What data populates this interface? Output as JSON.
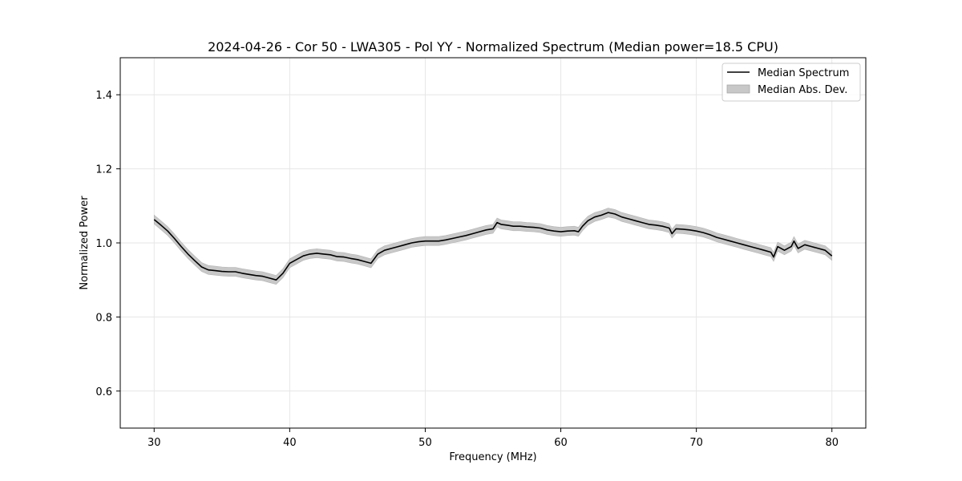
{
  "chart_data": {
    "type": "line",
    "title": "2024-04-26 - Cor 50 - LWA305 - Pol YY - Normalized Spectrum (Median power=18.5 CPU)",
    "xlabel": "Frequency (MHz)",
    "ylabel": "Normalized Power",
    "xlim": [
      27.5,
      82.5
    ],
    "ylim": [
      0.5,
      1.5
    ],
    "xticks": [
      30,
      40,
      50,
      60,
      70,
      80
    ],
    "yticks": [
      0.6,
      0.8,
      1.0,
      1.2,
      1.4
    ],
    "xtick_labels": [
      "30",
      "40",
      "50",
      "60",
      "70",
      "80"
    ],
    "ytick_labels": [
      "0.6",
      "0.8",
      "1.0",
      "1.2",
      "1.4"
    ],
    "grid": true,
    "legend_position": "top-right",
    "colors": {
      "line": "#000000",
      "band": "#c8c8c8",
      "grid": "#e6e6e6"
    },
    "series": [
      {
        "name": "Median Spectrum",
        "x": [
          30,
          30.5,
          31,
          31.5,
          32,
          32.5,
          33,
          33.5,
          34,
          34.5,
          35,
          35.5,
          36,
          36.5,
          37,
          37.5,
          38,
          38.5,
          39,
          39.5,
          40,
          40.5,
          41,
          41.5,
          42,
          42.5,
          43,
          43.5,
          44,
          44.5,
          45,
          45.5,
          46,
          46.5,
          47,
          47.5,
          48,
          48.5,
          49,
          49.5,
          50,
          50.5,
          51,
          51.5,
          52,
          52.5,
          53,
          53.5,
          54,
          54.5,
          55,
          55.3,
          55.6,
          56,
          56.5,
          57,
          57.5,
          58,
          58.5,
          59,
          59.5,
          60,
          60.5,
          61,
          61.3,
          61.6,
          62,
          62.5,
          63,
          63.5,
          64,
          64.5,
          65,
          65.5,
          66,
          66.5,
          67,
          67.5,
          68,
          68.2,
          68.5,
          69,
          69.5,
          70,
          70.5,
          71,
          71.5,
          72,
          72.5,
          73,
          73.5,
          74,
          74.5,
          75,
          75.5,
          75.7,
          76,
          76.5,
          77,
          77.2,
          77.5,
          78,
          78.5,
          79,
          79.5,
          80
        ],
        "y": [
          1.063,
          1.048,
          1.032,
          1.012,
          0.99,
          0.97,
          0.952,
          0.935,
          0.927,
          0.925,
          0.923,
          0.922,
          0.922,
          0.918,
          0.915,
          0.912,
          0.91,
          0.905,
          0.9,
          0.918,
          0.945,
          0.955,
          0.965,
          0.97,
          0.972,
          0.97,
          0.968,
          0.963,
          0.962,
          0.958,
          0.955,
          0.95,
          0.945,
          0.97,
          0.98,
          0.985,
          0.99,
          0.995,
          1.0,
          1.003,
          1.005,
          1.005,
          1.005,
          1.008,
          1.012,
          1.016,
          1.02,
          1.025,
          1.03,
          1.035,
          1.038,
          1.055,
          1.05,
          1.048,
          1.045,
          1.045,
          1.043,
          1.042,
          1.04,
          1.035,
          1.032,
          1.03,
          1.032,
          1.033,
          1.03,
          1.045,
          1.06,
          1.07,
          1.075,
          1.082,
          1.078,
          1.07,
          1.065,
          1.06,
          1.055,
          1.05,
          1.048,
          1.045,
          1.04,
          1.025,
          1.038,
          1.037,
          1.035,
          1.032,
          1.028,
          1.022,
          1.015,
          1.01,
          1.005,
          1.0,
          0.995,
          0.99,
          0.985,
          0.98,
          0.975,
          0.962,
          0.99,
          0.98,
          0.99,
          1.005,
          0.985,
          0.995,
          0.99,
          0.985,
          0.98,
          0.965
        ]
      }
    ],
    "band": {
      "name": "Median Abs. Dev.",
      "halfwidth": 0.012
    },
    "legend": [
      "Median Spectrum",
      "Median Abs. Dev."
    ]
  }
}
